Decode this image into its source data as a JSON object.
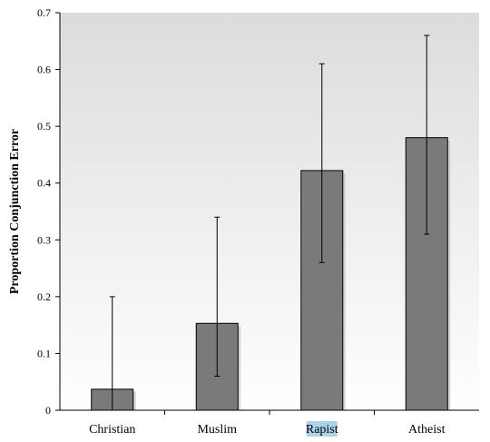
{
  "chart_data": {
    "type": "bar",
    "ylabel": "Proportion Conjunction Error",
    "xlabel": "",
    "title": "",
    "categories": [
      "Christian",
      "Muslim",
      "Rapist",
      "Atheist"
    ],
    "values": [
      0.037,
      0.153,
      0.422,
      0.48
    ],
    "error_upper": [
      0.2,
      0.34,
      0.61,
      0.66
    ],
    "error_lower": [
      0.0,
      0.06,
      0.26,
      0.31
    ],
    "ylim": [
      0,
      0.7
    ],
    "yticks": [
      "0",
      "0.1",
      "0.2",
      "0.3",
      "0.4",
      "0.5",
      "0.6",
      "0.7"
    ],
    "grid": false,
    "bar_color": "#7a7a7a",
    "highlighted_category": "Rapist",
    "highlight_color": "#a9d4ec"
  }
}
